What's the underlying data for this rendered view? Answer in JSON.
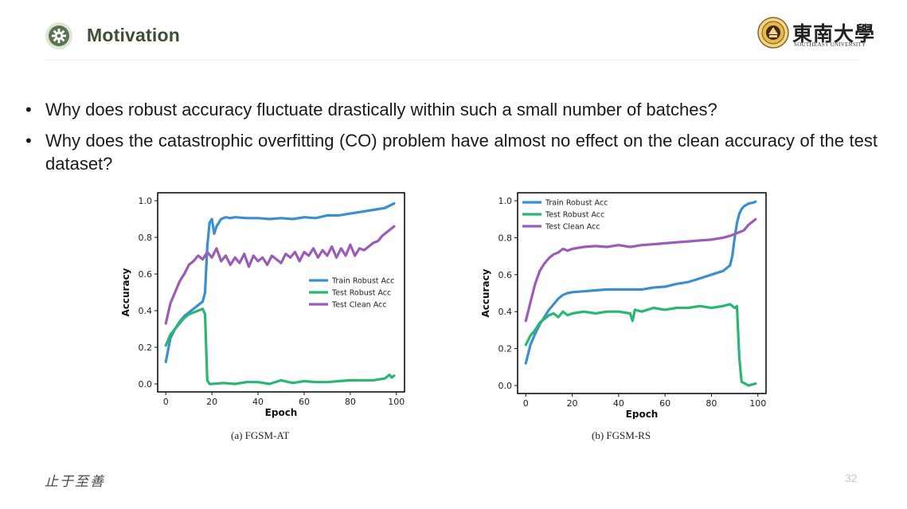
{
  "header": {
    "title": "Motivation",
    "university_name": "東南大學",
    "university_subtitle": "SOUTHEAST UNIVERSITY"
  },
  "bullets": [
    "Why does robust accuracy fluctuate drastically within such a small number of batches?",
    "Why does the catastrophic overfitting (CO) problem have almost no effect on the clean accuracy of the test dataset?"
  ],
  "footer": {
    "motto": "止于至善",
    "page": "32"
  },
  "colors": {
    "train_robust": "#3a90cf",
    "test_robust": "#2bb673",
    "test_clean": "#9b5cb8",
    "title": "#3e4f35"
  },
  "chart_data": [
    {
      "type": "line",
      "caption": "(a) FGSM-AT",
      "xlabel": "Epoch",
      "ylabel": "Accuracy",
      "xlim": [
        0,
        100
      ],
      "ylim": [
        0,
        1.0
      ],
      "xticks": [
        "0",
        "20",
        "40",
        "60",
        "80",
        "100"
      ],
      "yticks": [
        "0.0",
        "0.2",
        "0.4",
        "0.6",
        "0.8",
        "1.0"
      ],
      "legend_position": "center-right",
      "grid": false,
      "series": [
        {
          "name": "Train Robust Acc",
          "color": "#3a90cf",
          "x": [
            0,
            2,
            4,
            6,
            8,
            10,
            12,
            14,
            16,
            17,
            18,
            19,
            20,
            21,
            22,
            24,
            26,
            28,
            30,
            35,
            40,
            45,
            50,
            55,
            60,
            65,
            70,
            75,
            80,
            85,
            90,
            95,
            99
          ],
          "y": [
            0.12,
            0.25,
            0.3,
            0.34,
            0.37,
            0.39,
            0.41,
            0.43,
            0.45,
            0.5,
            0.75,
            0.88,
            0.9,
            0.82,
            0.86,
            0.9,
            0.91,
            0.905,
            0.91,
            0.905,
            0.905,
            0.9,
            0.905,
            0.9,
            0.91,
            0.905,
            0.92,
            0.92,
            0.93,
            0.94,
            0.95,
            0.96,
            0.985
          ]
        },
        {
          "name": "Test Robust Acc",
          "color": "#2bb673",
          "x": [
            0,
            2,
            4,
            6,
            8,
            10,
            12,
            14,
            16,
            17,
            18,
            19,
            20,
            25,
            30,
            35,
            40,
            45,
            50,
            55,
            60,
            65,
            70,
            75,
            80,
            85,
            90,
            95,
            97,
            98,
            99
          ],
          "y": [
            0.21,
            0.27,
            0.3,
            0.33,
            0.36,
            0.38,
            0.39,
            0.4,
            0.41,
            0.38,
            0.02,
            0.0,
            0.0,
            0.005,
            0.0,
            0.01,
            0.01,
            0.0,
            0.02,
            0.005,
            0.015,
            0.01,
            0.01,
            0.015,
            0.02,
            0.02,
            0.02,
            0.03,
            0.05,
            0.035,
            0.045
          ]
        },
        {
          "name": "Test Clean Acc",
          "color": "#9b5cb8",
          "x": [
            0,
            2,
            4,
            6,
            8,
            10,
            12,
            14,
            16,
            18,
            20,
            22,
            24,
            26,
            28,
            30,
            32,
            34,
            36,
            38,
            40,
            42,
            44,
            46,
            48,
            50,
            52,
            54,
            56,
            58,
            60,
            62,
            64,
            66,
            68,
            70,
            72,
            74,
            76,
            78,
            80,
            82,
            84,
            86,
            88,
            90,
            92,
            94,
            96,
            98,
            99
          ],
          "y": [
            0.33,
            0.44,
            0.5,
            0.56,
            0.6,
            0.65,
            0.67,
            0.7,
            0.68,
            0.72,
            0.69,
            0.74,
            0.67,
            0.7,
            0.65,
            0.69,
            0.66,
            0.71,
            0.64,
            0.7,
            0.67,
            0.69,
            0.65,
            0.7,
            0.68,
            0.66,
            0.71,
            0.69,
            0.72,
            0.67,
            0.72,
            0.7,
            0.74,
            0.69,
            0.73,
            0.7,
            0.75,
            0.69,
            0.74,
            0.7,
            0.76,
            0.7,
            0.74,
            0.73,
            0.75,
            0.77,
            0.78,
            0.81,
            0.83,
            0.85,
            0.86
          ]
        }
      ]
    },
    {
      "type": "line",
      "caption": "(b) FGSM-RS",
      "xlabel": "Epoch",
      "ylabel": "Accuracy",
      "xlim": [
        0,
        100
      ],
      "ylim": [
        0,
        1.0
      ],
      "xticks": [
        "0",
        "20",
        "40",
        "60",
        "80",
        "100"
      ],
      "yticks": [
        "0.0",
        "0.2",
        "0.4",
        "0.6",
        "0.8",
        "1.0"
      ],
      "legend_position": "top-left",
      "grid": false,
      "series": [
        {
          "name": "Train Robust Acc",
          "color": "#3a90cf",
          "x": [
            0,
            2,
            4,
            6,
            8,
            10,
            12,
            14,
            16,
            18,
            20,
            25,
            30,
            35,
            40,
            45,
            50,
            55,
            60,
            65,
            70,
            75,
            80,
            85,
            88,
            89,
            90,
            91,
            92,
            93,
            94,
            96,
            98,
            99
          ],
          "y": [
            0.12,
            0.22,
            0.28,
            0.33,
            0.37,
            0.41,
            0.44,
            0.47,
            0.49,
            0.5,
            0.505,
            0.51,
            0.515,
            0.52,
            0.52,
            0.52,
            0.52,
            0.53,
            0.535,
            0.55,
            0.56,
            0.58,
            0.6,
            0.62,
            0.65,
            0.7,
            0.8,
            0.88,
            0.93,
            0.955,
            0.97,
            0.985,
            0.99,
            0.995
          ]
        },
        {
          "name": "Test Robust Acc",
          "color": "#2bb673",
          "x": [
            0,
            2,
            4,
            6,
            8,
            10,
            12,
            14,
            16,
            18,
            20,
            25,
            30,
            35,
            40,
            45,
            46,
            47,
            50,
            55,
            60,
            65,
            70,
            75,
            80,
            85,
            88,
            90,
            91,
            92,
            93,
            96,
            99
          ],
          "y": [
            0.22,
            0.27,
            0.3,
            0.34,
            0.36,
            0.38,
            0.39,
            0.37,
            0.4,
            0.38,
            0.39,
            0.4,
            0.39,
            0.4,
            0.4,
            0.39,
            0.35,
            0.41,
            0.4,
            0.42,
            0.41,
            0.42,
            0.42,
            0.43,
            0.42,
            0.43,
            0.44,
            0.42,
            0.43,
            0.15,
            0.02,
            0.0,
            0.01
          ]
        },
        {
          "name": "Test Clean Acc",
          "color": "#9b5cb8",
          "x": [
            0,
            2,
            4,
            6,
            8,
            10,
            12,
            14,
            16,
            18,
            20,
            25,
            30,
            35,
            40,
            45,
            50,
            55,
            60,
            65,
            70,
            75,
            80,
            85,
            88,
            90,
            92,
            94,
            96,
            98,
            99
          ],
          "y": [
            0.35,
            0.45,
            0.55,
            0.62,
            0.66,
            0.69,
            0.71,
            0.72,
            0.74,
            0.73,
            0.74,
            0.75,
            0.755,
            0.75,
            0.76,
            0.75,
            0.76,
            0.765,
            0.77,
            0.775,
            0.78,
            0.785,
            0.79,
            0.8,
            0.81,
            0.82,
            0.83,
            0.84,
            0.87,
            0.89,
            0.9
          ]
        }
      ]
    }
  ]
}
